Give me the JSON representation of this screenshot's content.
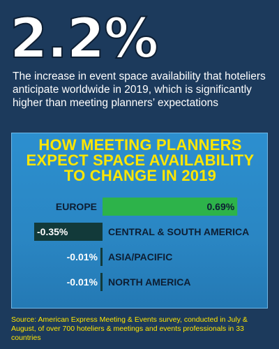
{
  "headline": {
    "value": "2.2%"
  },
  "description": "The increase in event space availability that hoteliers anticipate worldwide in 2019, which is significantly higher than meeting planners’ expectations",
  "colors": {
    "background": "#1c3a5c",
    "panel": "#2c8fcf",
    "title": "#ffe600",
    "positive_bar": "#2db34a",
    "negative_bar": "#123a3a",
    "text_dark": "#0d1e33",
    "text_light": "#ffffff"
  },
  "chart_data": {
    "type": "bar",
    "orientation": "horizontal-diverging",
    "title_lines": [
      "HOW MEETING PLANNERS",
      "EXPECT SPACE AVAILABILITY",
      "TO CHANGE IN 2019"
    ],
    "categories": [
      "EUROPE",
      "CENTRAL & SOUTH AMERICA",
      "ASIA/PACIFIC",
      "NORTH AMERICA"
    ],
    "values": [
      0.69,
      -0.35,
      -0.01,
      -0.01
    ],
    "value_labels": [
      "0.69%",
      "-0.35%",
      "-0.01%",
      "-0.01%"
    ],
    "xlabel": "",
    "ylabel": "",
    "xlim": [
      -0.7,
      0.75
    ],
    "grid": false,
    "legend": "none"
  },
  "source": "Source: American Express Meeting & Events survey, conducted in July & August, of over 700 hoteliers & meetings and events professionals in 33 countries"
}
